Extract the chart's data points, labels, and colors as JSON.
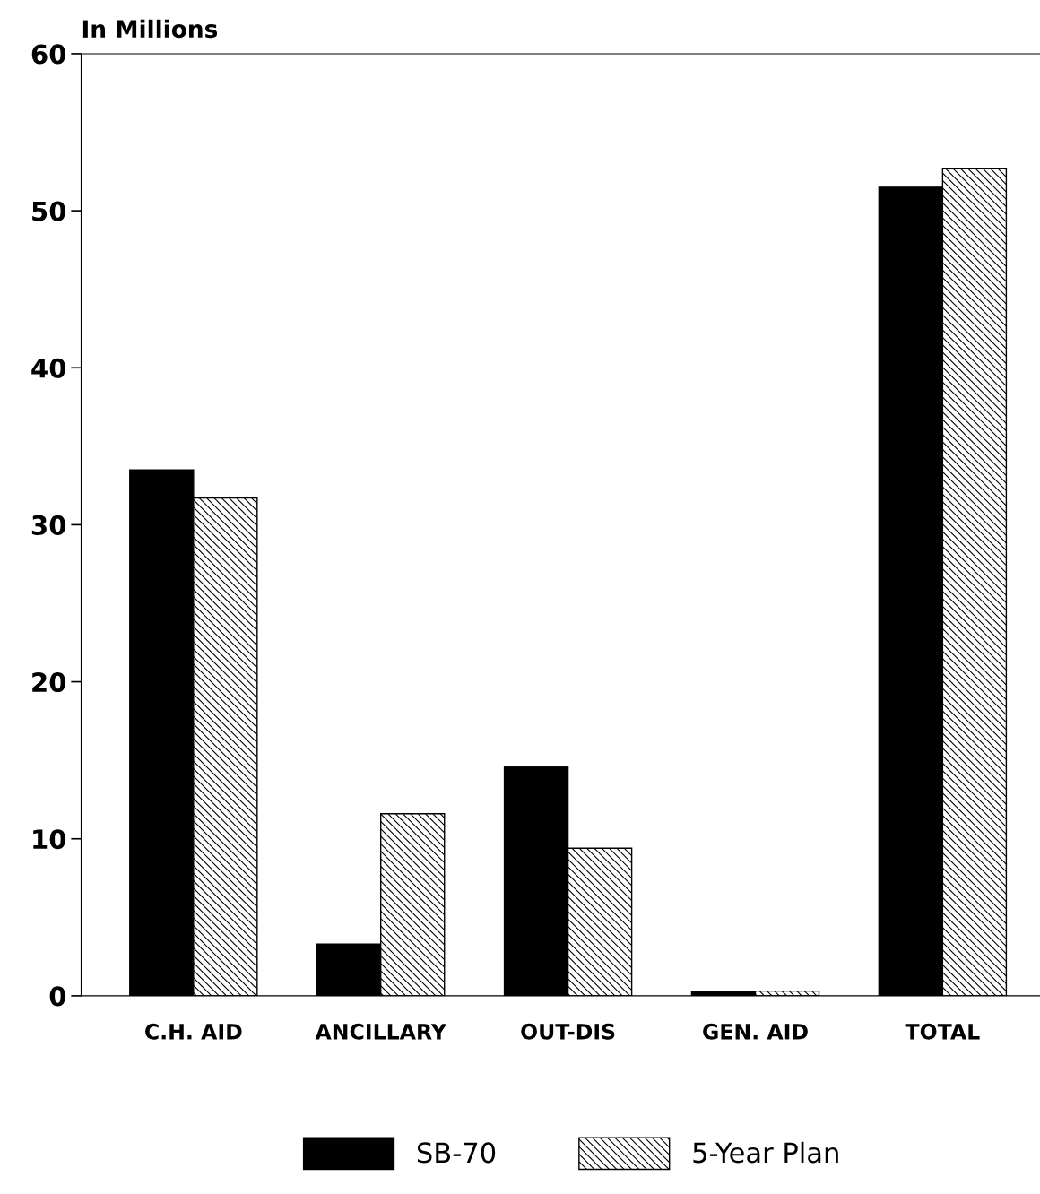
{
  "chart_data": {
    "type": "bar",
    "ylabel": "In Millions",
    "categories": [
      "C.H. AID",
      "ANCILLARY",
      "OUT-DIS",
      "GEN. AID",
      "TOTAL"
    ],
    "series": [
      {
        "name": "SB-70",
        "color": "#000000",
        "values": [
          33.5,
          3.3,
          14.6,
          0.3,
          51.5
        ]
      },
      {
        "name": "5-Year Plan",
        "color": "#000000",
        "values": [
          31.7,
          11.6,
          9.4,
          0.3,
          52.7
        ]
      }
    ],
    "ylim": [
      0,
      60
    ],
    "yticks": [
      0,
      10,
      20,
      30,
      40,
      50,
      60
    ],
    "grid": false,
    "legend": "bottom"
  }
}
